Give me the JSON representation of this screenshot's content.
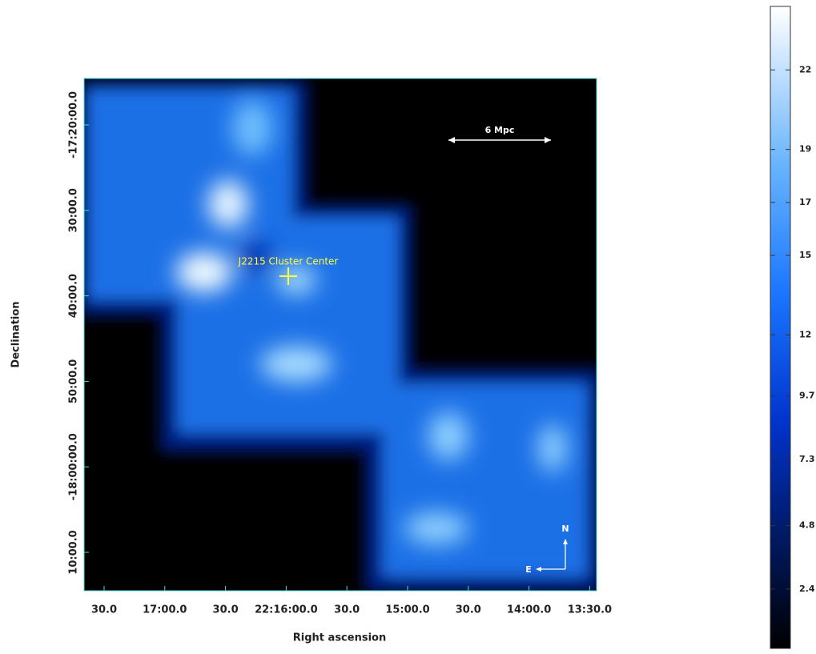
{
  "chart_data": {
    "type": "image",
    "xlabel": "Right ascension",
    "ylabel": "Declination",
    "xticks": [
      "30.0",
      "17:00.0",
      "30.0",
      "22:16:00.0",
      "30.0",
      "15:00.0",
      "30.0",
      "14:00.0",
      "13:30.0"
    ],
    "yticks": [
      "-17:20:00.0",
      "30:00.0",
      "40:00.0",
      "50:00.0",
      "-18:00:00.0",
      "10:00.0"
    ],
    "annotations": {
      "target": "J2215 Cluster Center",
      "scale_bar": "6 Mpc",
      "north": "N",
      "east": "E"
    },
    "colorbar": {
      "lim": [
        0.16,
        24.4
      ],
      "ticks": [
        2.4,
        4.8,
        7.3,
        9.7,
        12,
        15,
        17,
        19,
        22
      ]
    }
  }
}
